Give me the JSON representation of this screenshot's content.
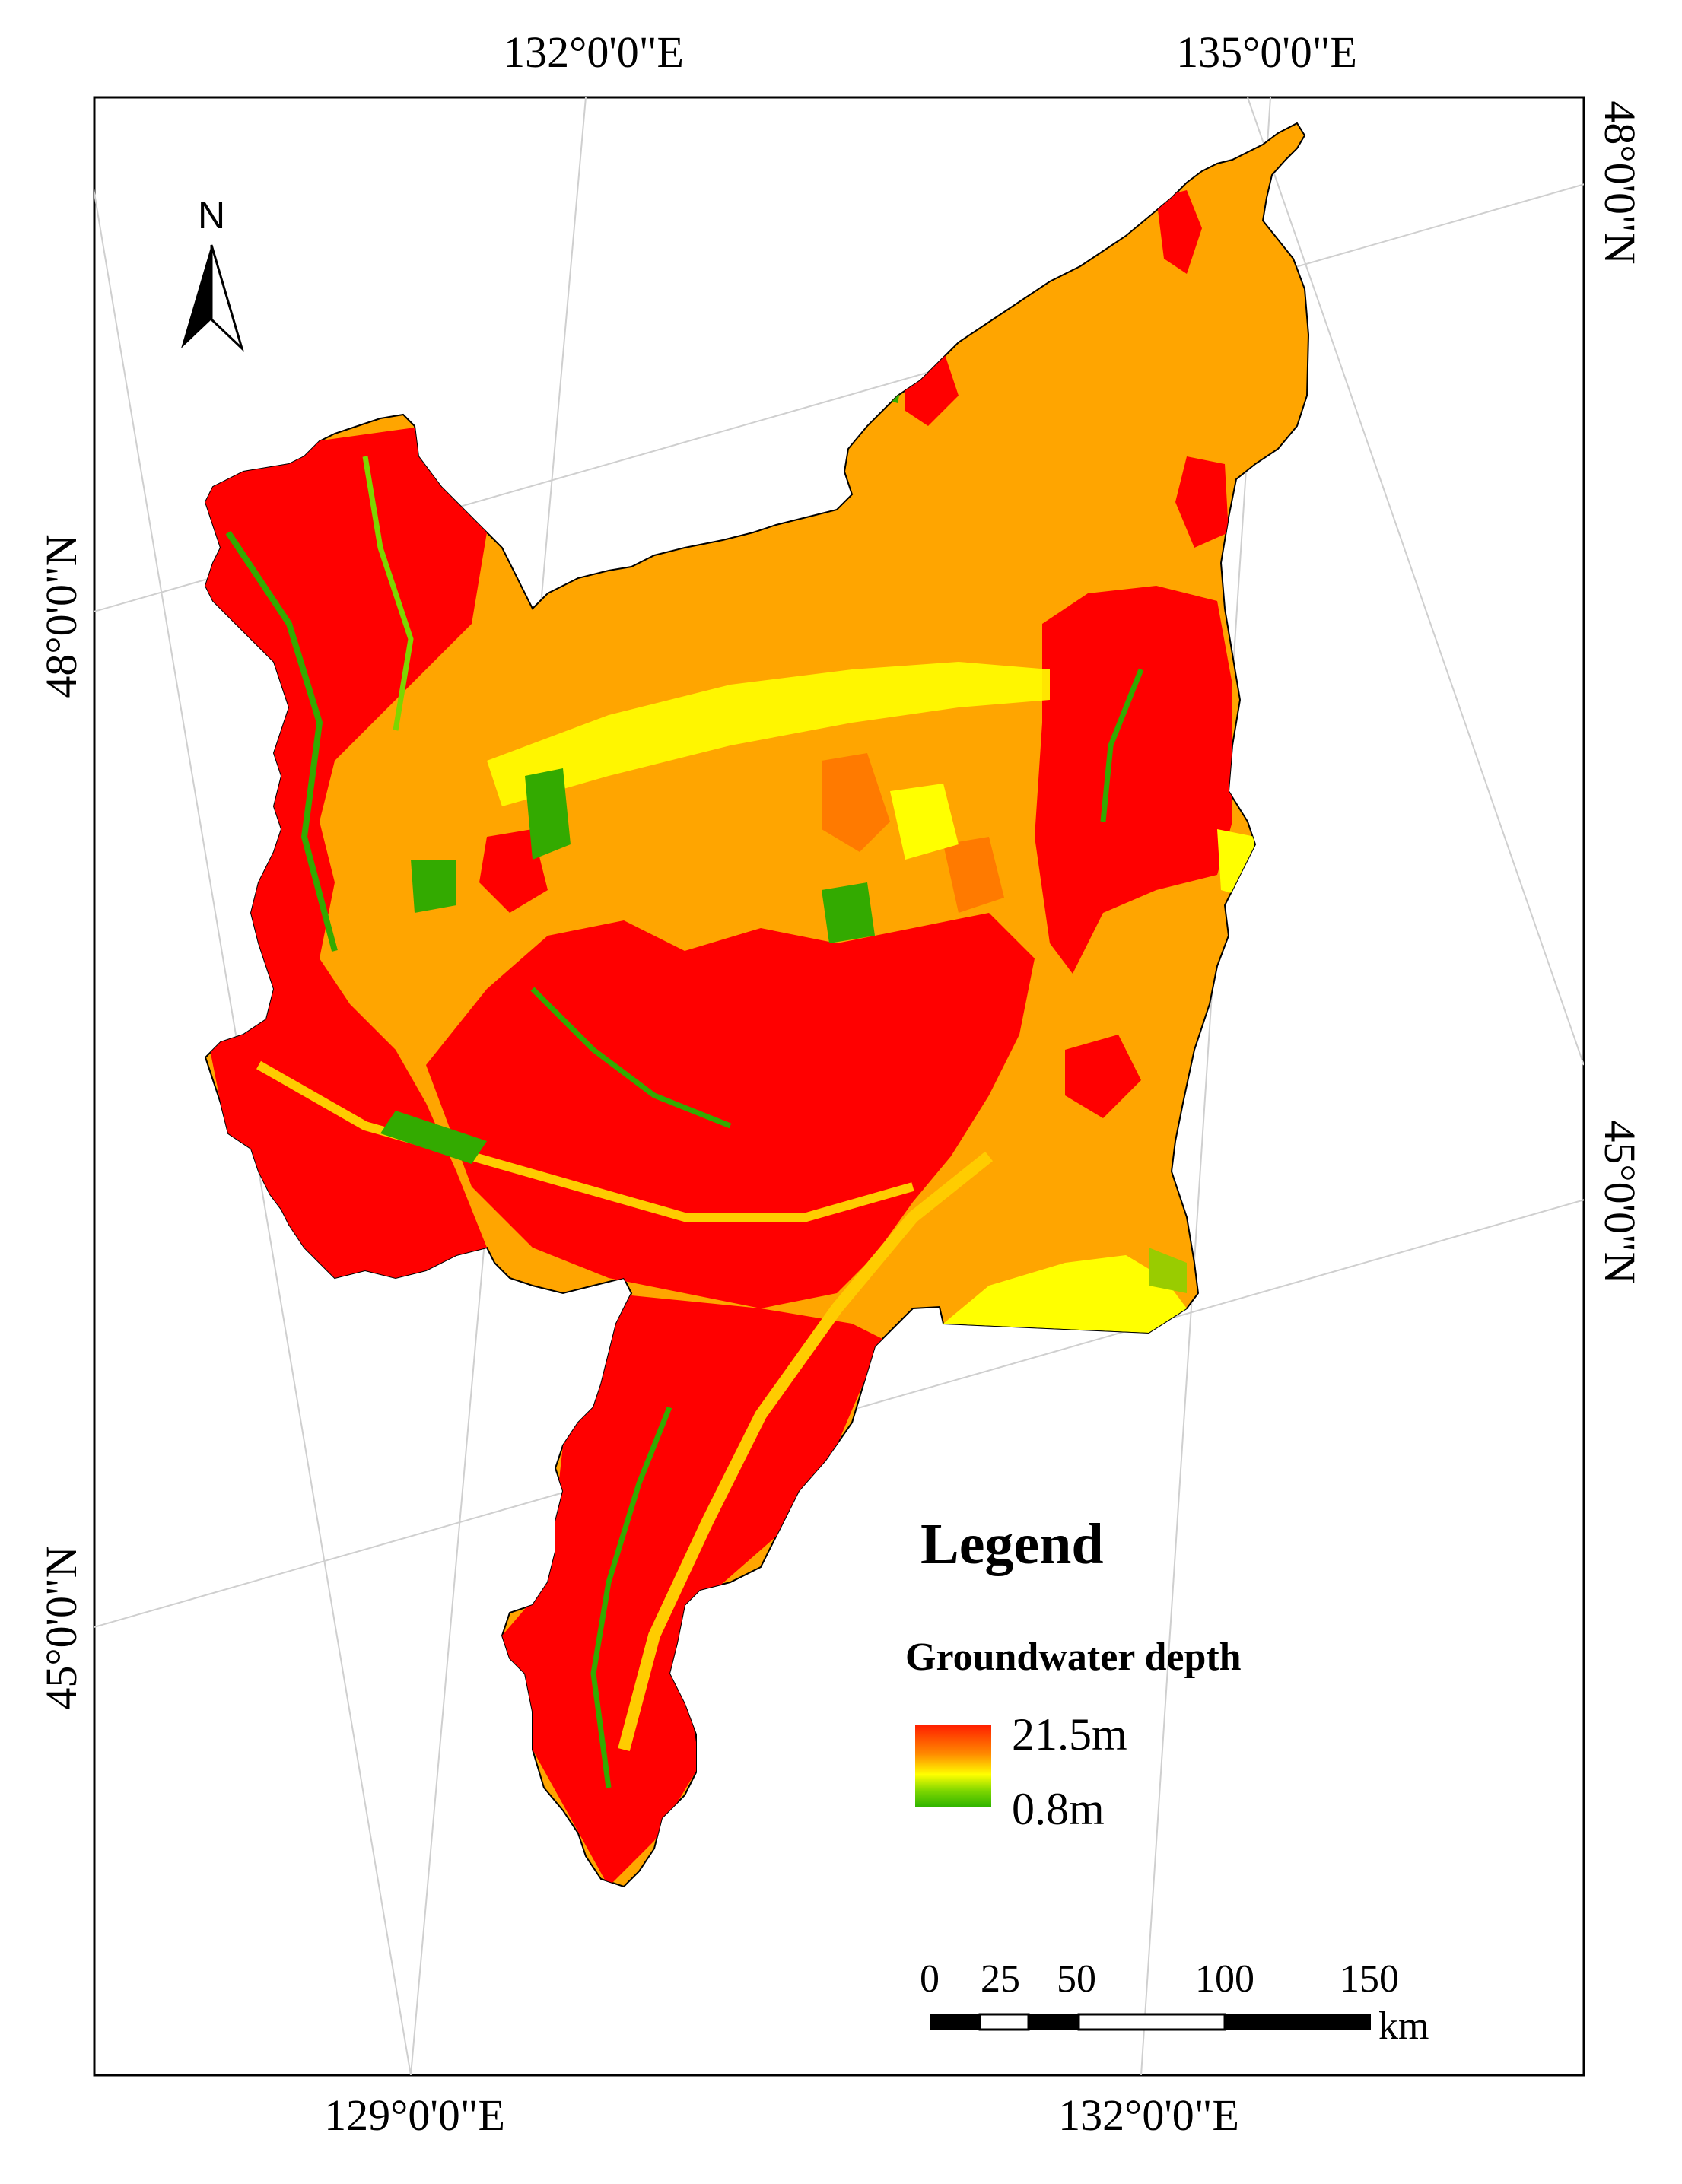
{
  "graticule": {
    "top": [
      "132°0'0\"E",
      "135°0'0\"E"
    ],
    "bottom": [
      "129°0'0\"E",
      "132°0'0\"E"
    ],
    "left": [
      "48°0'0\"N",
      "45°0'0\"N"
    ],
    "right": [
      "48°0'0\"N",
      "45°0'0\"N"
    ]
  },
  "north_arrow": {
    "label": "N"
  },
  "legend": {
    "title": "Legend",
    "layer": "Groundwater depth",
    "max_label": "21.5m",
    "min_label": "0.8m",
    "ramp_colors": [
      "#ff0000",
      "#ff8a00",
      "#ffff00",
      "#2db300"
    ]
  },
  "scale_bar": {
    "ticks": [
      "0",
      "25",
      "50",
      "100",
      "150"
    ],
    "unit": "km"
  },
  "colors": {
    "deep": "#ff0000",
    "orange": "#ffa500",
    "mid_orange": "#ff7a00",
    "yellow": "#ffff00",
    "green": "#33aa00",
    "light_green": "#99cc00"
  }
}
